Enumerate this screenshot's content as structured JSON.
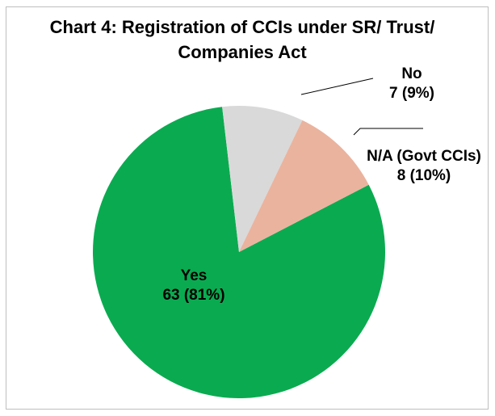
{
  "chart_data": {
    "type": "pie",
    "title": "Chart 4: Registration of CCIs under SR/ Trust/ Companies Act",
    "categories": [
      "Yes",
      "No",
      "N/A (Govt CCIs)"
    ],
    "values": [
      63,
      7,
      8
    ],
    "value_labels": [
      "63 (81%)",
      "7 (9%)",
      "8 (10%)"
    ],
    "colors": [
      "#0aab50",
      "#d9d9d9",
      "#eab39e"
    ]
  }
}
